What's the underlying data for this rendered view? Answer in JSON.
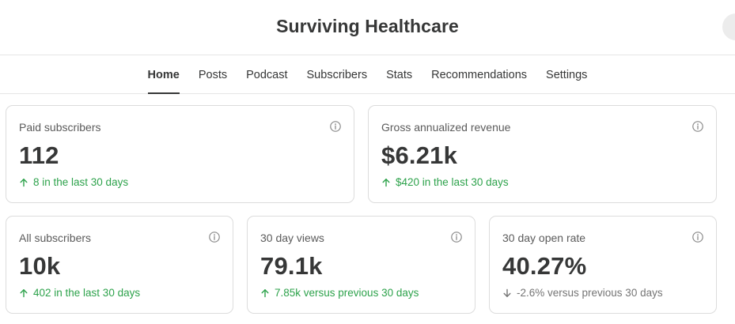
{
  "header": {
    "title": "Surviving Healthcare"
  },
  "nav": {
    "tabs": [
      {
        "label": "Home",
        "active": true
      },
      {
        "label": "Posts",
        "active": false
      },
      {
        "label": "Podcast",
        "active": false
      },
      {
        "label": "Subscribers",
        "active": false
      },
      {
        "label": "Stats",
        "active": false
      },
      {
        "label": "Recommendations",
        "active": false
      },
      {
        "label": "Settings",
        "active": false
      }
    ]
  },
  "stats": {
    "paid_subscribers": {
      "label": "Paid subscribers",
      "value": "112",
      "delta": "8 in the last 30 days",
      "trend": "up"
    },
    "gross_revenue": {
      "label": "Gross annualized revenue",
      "value": "$6.21k",
      "delta": "$420 in the last 30 days",
      "trend": "up"
    },
    "all_subscribers": {
      "label": "All subscribers",
      "value": "10k",
      "delta": "402 in the last 30 days",
      "trend": "up"
    },
    "views_30d": {
      "label": "30 day views",
      "value": "79.1k",
      "delta": "7.85k versus previous 30 days",
      "trend": "up"
    },
    "open_rate_30d": {
      "label": "30 day open rate",
      "value": "40.27%",
      "delta": "-2.6% versus previous 30 days",
      "trend": "down"
    }
  },
  "colors": {
    "positive": "#2da24b",
    "neutral_negative": "#757575",
    "text": "#363737"
  }
}
